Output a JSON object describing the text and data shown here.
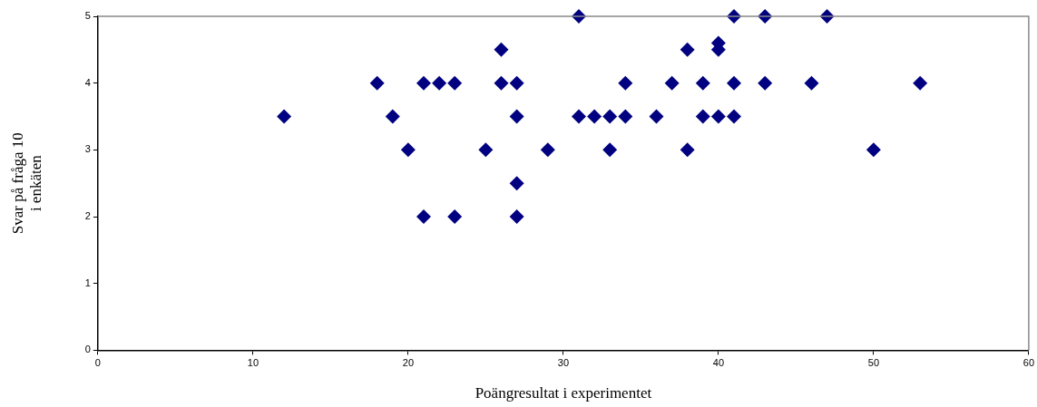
{
  "chart_data": {
    "type": "scatter",
    "xlabel": "Poängresultat i experimentet",
    "ylabel": "Svar på fråga 10\ni enkäten",
    "xlim": [
      0,
      60
    ],
    "xticks": [
      0,
      10,
      20,
      30,
      40,
      50,
      60
    ],
    "ylim": [
      0,
      5
    ],
    "yticks": [
      0,
      1,
      2,
      3,
      4,
      5
    ],
    "grid": false,
    "legend": false,
    "marker": "diamond",
    "series": [
      {
        "color": "#000080",
        "x": [
          12,
          18,
          19,
          20,
          21,
          21,
          22,
          23,
          23,
          25,
          26,
          26,
          27,
          27,
          27,
          27,
          29,
          31,
          31,
          32,
          33,
          33,
          34,
          34,
          36,
          37,
          38,
          38,
          39,
          39,
          40,
          40,
          40,
          41,
          41,
          41,
          43,
          43,
          46,
          47,
          50,
          53
        ],
        "values": [
          3.5,
          4,
          3.5,
          3,
          4,
          2,
          4,
          4,
          2,
          3,
          4.5,
          4,
          4,
          3.5,
          2.5,
          2,
          3,
          5,
          3.5,
          3.5,
          3.5,
          3,
          4,
          3.5,
          3.5,
          4,
          4.5,
          3,
          4,
          3.5,
          4.6,
          4.5,
          3.5,
          5,
          4,
          3.5,
          5,
          4,
          4,
          5,
          3,
          4
        ]
      }
    ]
  }
}
